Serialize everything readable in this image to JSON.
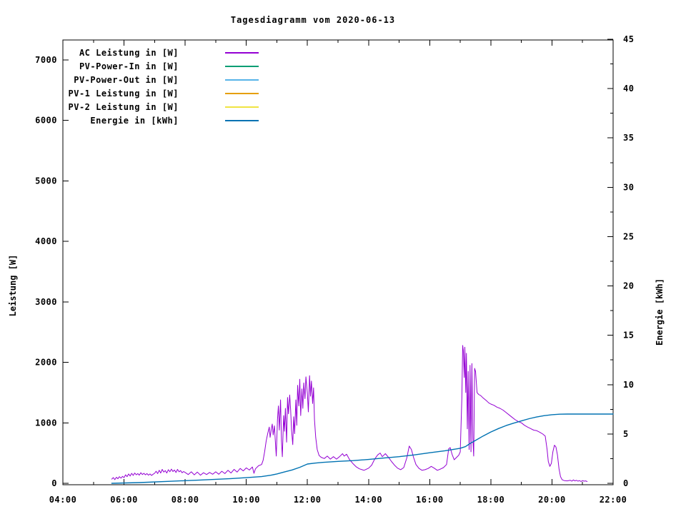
{
  "chart_data": {
    "type": "line",
    "title": "Tagesdiagramm vom 2020-06-13",
    "grid": false,
    "legend_position": "top-left-inside",
    "x_axis": {
      "min": 4,
      "max": 22,
      "major_step": 2,
      "minor_step": 1,
      "labels": [
        "04:00",
        "06:00",
        "08:00",
        "10:00",
        "12:00",
        "14:00",
        "16:00",
        "18:00",
        "20:00",
        "22:00"
      ]
    },
    "y_left": {
      "label": "Leistung [W]",
      "min": 0,
      "ticks": [
        0,
        1000,
        2000,
        3000,
        4000,
        5000,
        6000,
        7000
      ],
      "tick_labels": [
        "0",
        "1000",
        "2000",
        "3000",
        "4000",
        "5000",
        "6000",
        "7000"
      ]
    },
    "y_right": {
      "label": "Energie [kWh]",
      "min": 0,
      "max": 45,
      "major_step": 5,
      "minor_step": 2.5,
      "tick_labels": [
        "0",
        "5",
        "10",
        "15",
        "20",
        "25",
        "30",
        "35",
        "40",
        "45"
      ]
    },
    "series": [
      {
        "name": "AC Leistung in [W]",
        "color": "#9400d3",
        "axis": "left",
        "points": [
          [
            5.6,
            70
          ],
          [
            5.65,
            95
          ],
          [
            5.7,
            60
          ],
          [
            5.75,
            100
          ],
          [
            5.8,
            75
          ],
          [
            5.85,
            110
          ],
          [
            5.9,
            85
          ],
          [
            5.95,
            115
          ],
          [
            6.0,
            95
          ],
          [
            6.05,
            140
          ],
          [
            6.1,
            110
          ],
          [
            6.15,
            155
          ],
          [
            6.2,
            120
          ],
          [
            6.25,
            165
          ],
          [
            6.3,
            130
          ],
          [
            6.35,
            170
          ],
          [
            6.4,
            140
          ],
          [
            6.45,
            160
          ],
          [
            6.5,
            135
          ],
          [
            6.55,
            175
          ],
          [
            6.6,
            145
          ],
          [
            6.65,
            165
          ],
          [
            6.7,
            140
          ],
          [
            6.75,
            160
          ],
          [
            6.8,
            135
          ],
          [
            6.85,
            155
          ],
          [
            6.9,
            130
          ],
          [
            6.95,
            150
          ],
          [
            7.0,
            165
          ],
          [
            7.05,
            200
          ],
          [
            7.1,
            160
          ],
          [
            7.15,
            215
          ],
          [
            7.2,
            170
          ],
          [
            7.25,
            230
          ],
          [
            7.3,
            185
          ],
          [
            7.35,
            210
          ],
          [
            7.4,
            170
          ],
          [
            7.45,
            225
          ],
          [
            7.5,
            190
          ],
          [
            7.55,
            235
          ],
          [
            7.6,
            195
          ],
          [
            7.65,
            220
          ],
          [
            7.7,
            180
          ],
          [
            7.75,
            230
          ],
          [
            7.8,
            190
          ],
          [
            7.85,
            210
          ],
          [
            7.9,
            175
          ],
          [
            7.95,
            195
          ],
          [
            8.0,
            180
          ],
          [
            8.1,
            145
          ],
          [
            8.2,
            190
          ],
          [
            8.3,
            140
          ],
          [
            8.4,
            185
          ],
          [
            8.5,
            135
          ],
          [
            8.6,
            175
          ],
          [
            8.7,
            145
          ],
          [
            8.8,
            180
          ],
          [
            8.9,
            150
          ],
          [
            9.0,
            190
          ],
          [
            9.1,
            150
          ],
          [
            9.2,
            200
          ],
          [
            9.3,
            160
          ],
          [
            9.4,
            215
          ],
          [
            9.5,
            170
          ],
          [
            9.6,
            230
          ],
          [
            9.7,
            185
          ],
          [
            9.8,
            245
          ],
          [
            9.9,
            205
          ],
          [
            10.0,
            255
          ],
          [
            10.1,
            220
          ],
          [
            10.2,
            270
          ],
          [
            10.25,
            165
          ],
          [
            10.3,
            240
          ],
          [
            10.4,
            290
          ],
          [
            10.5,
            310
          ],
          [
            10.55,
            380
          ],
          [
            10.6,
            520
          ],
          [
            10.65,
            700
          ],
          [
            10.7,
            820
          ],
          [
            10.75,
            930
          ],
          [
            10.78,
            760
          ],
          [
            10.82,
            900
          ],
          [
            10.85,
            980
          ],
          [
            10.88,
            800
          ],
          [
            10.92,
            950
          ],
          [
            10.95,
            700
          ],
          [
            10.98,
            450
          ],
          [
            11.02,
            1050
          ],
          [
            11.05,
            1280
          ],
          [
            11.08,
            880
          ],
          [
            11.12,
            1380
          ],
          [
            11.15,
            700
          ],
          [
            11.18,
            440
          ],
          [
            11.22,
            1120
          ],
          [
            11.25,
            860
          ],
          [
            11.28,
            1240
          ],
          [
            11.32,
            680
          ],
          [
            11.35,
            1420
          ],
          [
            11.38,
            1150
          ],
          [
            11.42,
            1460
          ],
          [
            11.45,
            1220
          ],
          [
            11.48,
            880
          ],
          [
            11.52,
            640
          ],
          [
            11.55,
            1100
          ],
          [
            11.58,
            820
          ],
          [
            11.62,
            1380
          ],
          [
            11.65,
            960
          ],
          [
            11.68,
            1620
          ],
          [
            11.72,
            1280
          ],
          [
            11.75,
            1720
          ],
          [
            11.78,
            1120
          ],
          [
            11.82,
            1560
          ],
          [
            11.85,
            1240
          ],
          [
            11.88,
            1660
          ],
          [
            11.92,
            1400
          ],
          [
            11.95,
            1760
          ],
          [
            12.0,
            1480
          ],
          [
            12.03,
            1180
          ],
          [
            12.07,
            1780
          ],
          [
            12.1,
            1440
          ],
          [
            12.13,
            1690
          ],
          [
            12.17,
            1320
          ],
          [
            12.2,
            1580
          ],
          [
            12.23,
            1050
          ],
          [
            12.27,
            760
          ],
          [
            12.32,
            560
          ],
          [
            12.38,
            460
          ],
          [
            12.45,
            430
          ],
          [
            12.55,
            410
          ],
          [
            12.65,
            450
          ],
          [
            12.75,
            400
          ],
          [
            12.85,
            440
          ],
          [
            12.95,
            400
          ],
          [
            13.05,
            440
          ],
          [
            13.15,
            490
          ],
          [
            13.2,
            450
          ],
          [
            13.28,
            480
          ],
          [
            13.38,
            390
          ],
          [
            13.5,
            320
          ],
          [
            13.6,
            270
          ],
          [
            13.7,
            240
          ],
          [
            13.85,
            215
          ],
          [
            14.0,
            250
          ],
          [
            14.1,
            300
          ],
          [
            14.2,
            400
          ],
          [
            14.3,
            470
          ],
          [
            14.38,
            500
          ],
          [
            14.45,
            440
          ],
          [
            14.55,
            490
          ],
          [
            14.65,
            430
          ],
          [
            14.75,
            360
          ],
          [
            14.85,
            300
          ],
          [
            14.95,
            250
          ],
          [
            15.05,
            225
          ],
          [
            15.15,
            260
          ],
          [
            15.25,
            420
          ],
          [
            15.33,
            615
          ],
          [
            15.4,
            560
          ],
          [
            15.47,
            430
          ],
          [
            15.55,
            310
          ],
          [
            15.65,
            245
          ],
          [
            15.75,
            215
          ],
          [
            15.85,
            225
          ],
          [
            15.95,
            245
          ],
          [
            16.05,
            280
          ],
          [
            16.15,
            250
          ],
          [
            16.25,
            215
          ],
          [
            16.35,
            235
          ],
          [
            16.45,
            260
          ],
          [
            16.55,
            310
          ],
          [
            16.62,
            570
          ],
          [
            16.67,
            590
          ],
          [
            16.73,
            480
          ],
          [
            16.8,
            390
          ],
          [
            16.88,
            430
          ],
          [
            16.95,
            465
          ],
          [
            17.0,
            520
          ],
          [
            17.05,
            1400
          ],
          [
            17.08,
            2280
          ],
          [
            17.1,
            2200
          ],
          [
            17.13,
            1750
          ],
          [
            17.15,
            2250
          ],
          [
            17.18,
            1500
          ],
          [
            17.2,
            2150
          ],
          [
            17.23,
            900
          ],
          [
            17.26,
            1850
          ],
          [
            17.29,
            560
          ],
          [
            17.32,
            1950
          ],
          [
            17.35,
            520
          ],
          [
            17.38,
            1980
          ],
          [
            17.41,
            750
          ],
          [
            17.44,
            450
          ],
          [
            17.47,
            1900
          ],
          [
            17.5,
            1850
          ],
          [
            17.55,
            1500
          ],
          [
            17.6,
            1470
          ],
          [
            17.67,
            1450
          ],
          [
            17.73,
            1420
          ],
          [
            17.8,
            1390
          ],
          [
            17.87,
            1360
          ],
          [
            17.93,
            1330
          ],
          [
            18.0,
            1310
          ],
          [
            18.1,
            1290
          ],
          [
            18.2,
            1260
          ],
          [
            18.3,
            1240
          ],
          [
            18.4,
            1210
          ],
          [
            18.5,
            1170
          ],
          [
            18.6,
            1130
          ],
          [
            18.7,
            1090
          ],
          [
            18.8,
            1050
          ],
          [
            18.9,
            1020
          ],
          [
            19.0,
            1000
          ],
          [
            19.1,
            960
          ],
          [
            19.2,
            930
          ],
          [
            19.3,
            905
          ],
          [
            19.4,
            880
          ],
          [
            19.5,
            870
          ],
          [
            19.6,
            845
          ],
          [
            19.7,
            815
          ],
          [
            19.78,
            780
          ],
          [
            19.84,
            560
          ],
          [
            19.88,
            360
          ],
          [
            19.93,
            280
          ],
          [
            19.98,
            330
          ],
          [
            20.03,
            520
          ],
          [
            20.08,
            630
          ],
          [
            20.13,
            600
          ],
          [
            20.18,
            470
          ],
          [
            20.23,
            240
          ],
          [
            20.28,
            110
          ],
          [
            20.33,
            60
          ],
          [
            20.4,
            45
          ],
          [
            20.5,
            40
          ],
          [
            20.6,
            50
          ],
          [
            20.65,
            35
          ],
          [
            20.7,
            55
          ],
          [
            20.75,
            40
          ],
          [
            20.8,
            50
          ],
          [
            20.85,
            35
          ],
          [
            20.9,
            45
          ],
          [
            20.95,
            30
          ],
          [
            21.0,
            45
          ],
          [
            21.05,
            35
          ],
          [
            21.1,
            40
          ],
          [
            21.15,
            30
          ]
        ]
      },
      {
        "name": "PV-Power-In in [W]",
        "color": "#009e73",
        "axis": "left",
        "points": [],
        "note": "listed in legend, no visible curve in plot"
      },
      {
        "name": "PV-Power-Out in [W]",
        "color": "#56b4e9",
        "axis": "left",
        "points": [],
        "note": "listed in legend, no visible curve in plot"
      },
      {
        "name": "PV-1 Leistung in [W]",
        "color": "#e69f00",
        "axis": "left",
        "points": [],
        "note": "listed in legend, no visible curve in plot"
      },
      {
        "name": "PV-2 Leistung in [W]",
        "color": "#f0e442",
        "axis": "left",
        "points": [],
        "note": "listed in legend, no visible curve in plot"
      },
      {
        "name": "Energie in [kWh]",
        "color": "#0072b2",
        "axis": "right",
        "points": [
          [
            5.6,
            0
          ],
          [
            6.5,
            0.07
          ],
          [
            7.5,
            0.2
          ],
          [
            8.5,
            0.33
          ],
          [
            9.5,
            0.48
          ],
          [
            10.0,
            0.57
          ],
          [
            10.5,
            0.68
          ],
          [
            10.8,
            0.82
          ],
          [
            11.0,
            0.95
          ],
          [
            11.25,
            1.15
          ],
          [
            11.5,
            1.35
          ],
          [
            11.75,
            1.62
          ],
          [
            12.0,
            1.95
          ],
          [
            12.25,
            2.05
          ],
          [
            12.5,
            2.12
          ],
          [
            13.0,
            2.22
          ],
          [
            13.5,
            2.3
          ],
          [
            14.0,
            2.42
          ],
          [
            14.5,
            2.56
          ],
          [
            15.0,
            2.7
          ],
          [
            15.5,
            2.88
          ],
          [
            16.0,
            3.1
          ],
          [
            16.5,
            3.3
          ],
          [
            16.75,
            3.42
          ],
          [
            17.0,
            3.55
          ],
          [
            17.17,
            3.72
          ],
          [
            17.33,
            4.05
          ],
          [
            17.5,
            4.35
          ],
          [
            17.75,
            4.8
          ],
          [
            18.0,
            5.2
          ],
          [
            18.25,
            5.55
          ],
          [
            18.5,
            5.85
          ],
          [
            18.75,
            6.1
          ],
          [
            19.0,
            6.32
          ],
          [
            19.25,
            6.55
          ],
          [
            19.5,
            6.72
          ],
          [
            19.75,
            6.86
          ],
          [
            20.0,
            6.95
          ],
          [
            20.25,
            7.0
          ],
          [
            20.5,
            7.02
          ],
          [
            21.0,
            7.02
          ],
          [
            22.0,
            7.02
          ]
        ]
      }
    ],
    "style": {
      "background": "#ffffff",
      "axis_color": "#000000",
      "text_color": "#000000"
    }
  }
}
